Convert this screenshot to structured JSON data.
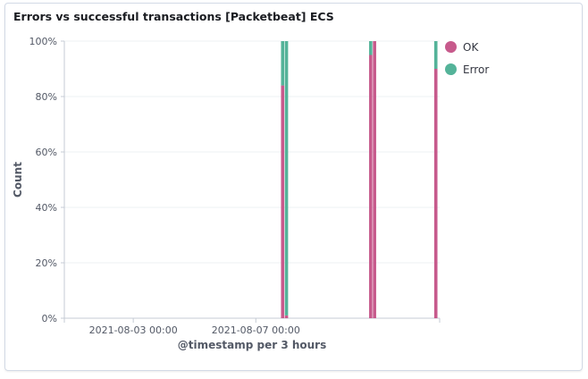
{
  "panel": {
    "title": "Errors vs successful transactions [Packetbeat] ECS"
  },
  "colors": {
    "ok": "#c75a8c",
    "error": "#54b399",
    "grid": "#eef0f3",
    "axis": "#c5cbd4"
  },
  "chart_data": {
    "type": "bar",
    "stacked": true,
    "percentage": true,
    "title": "Errors vs successful transactions [Packetbeat] ECS",
    "xlabel": "@timestamp per 3 hours",
    "ylabel": "Count",
    "x_ticks": [
      "2021-08-03 00:00",
      "2021-08-07 00:00"
    ],
    "y_ticks": [
      "0%",
      "20%",
      "40%",
      "60%",
      "80%",
      "100%"
    ],
    "ylim": [
      0,
      100
    ],
    "grid": "horizontal",
    "legend_position": "right",
    "x_unit": "day",
    "x_domain": [
      "2021-07-31 18:00",
      "2021-08-13 00:00"
    ],
    "bucket_days": 0.125,
    "timestamps": [
      "2021-08-07 21:00",
      "2021-08-08 00:00",
      "2021-08-10 18:00",
      "2021-08-10 21:00",
      "2021-08-12 21:00"
    ],
    "series": [
      {
        "name": "OK",
        "color": "#c75a8c",
        "values": [
          84,
          1,
          95,
          100,
          90
        ]
      },
      {
        "name": "Error",
        "color": "#54b399",
        "values": [
          16,
          99,
          5,
          0,
          10
        ]
      }
    ]
  }
}
